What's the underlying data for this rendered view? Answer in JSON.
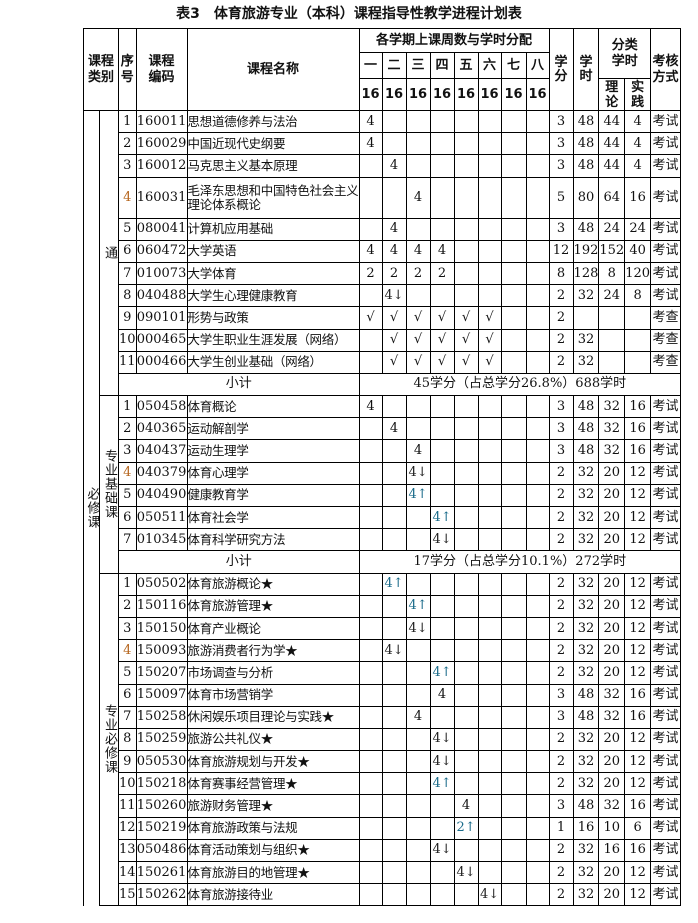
{
  "title": "表3　体育旅游专业（本科）课程指导性教学进程计划表",
  "header": {
    "category": "课程类别",
    "seq": "序号",
    "code": "课程编码",
    "name": "课程名称",
    "semester_group": "各学期上课周数与学时分配",
    "semesters": [
      "一",
      "二",
      "三",
      "四",
      "五",
      "六",
      "七",
      "八"
    ],
    "weeks": [
      "16",
      "16",
      "16",
      "16",
      "16",
      "16",
      "16",
      "16"
    ],
    "credits": "学分",
    "hours": "学时",
    "hour_types": "分类学时",
    "theory": "理论",
    "practice": "实践",
    "exam": "考核方式"
  },
  "outer_category": "必修课",
  "groups": [
    {
      "label": "通",
      "rows": [
        {
          "seq": "1",
          "code": "160011",
          "name": "思想道德修养与法治",
          "sem": [
            "4",
            "",
            "",
            "",
            "",
            "",
            "",
            ""
          ],
          "credits": "3",
          "hours": "48",
          "theory": "44",
          "practice": "4",
          "exam": "考试"
        },
        {
          "seq": "2",
          "code": "160029",
          "name": "中国近现代史纲要",
          "sem": [
            "4",
            "",
            "",
            "",
            "",
            "",
            "",
            ""
          ],
          "credits": "3",
          "hours": "48",
          "theory": "44",
          "practice": "4",
          "exam": "考试"
        },
        {
          "seq": "3",
          "code": "160012",
          "name": "马克思主义基本原理",
          "sem": [
            "",
            "4",
            "",
            "",
            "",
            "",
            "",
            ""
          ],
          "credits": "3",
          "hours": "48",
          "theory": "44",
          "practice": "4",
          "exam": "考试"
        },
        {
          "seq": "4",
          "code": "160031",
          "name": "毛泽东思想和中国特色社会主义理论体系概论",
          "sem": [
            "",
            "",
            "4",
            "",
            "",
            "",
            "",
            ""
          ],
          "credits": "5",
          "hours": "80",
          "theory": "64",
          "practice": "16",
          "exam": "考试"
        },
        {
          "seq": "5",
          "code": "080041",
          "name": "计算机应用基础",
          "sem": [
            "",
            "4",
            "",
            "",
            "",
            "",
            "",
            ""
          ],
          "credits": "3",
          "hours": "48",
          "theory": "24",
          "practice": "24",
          "exam": "考试"
        },
        {
          "seq": "6",
          "code": "060472",
          "name": "大学英语",
          "sem": [
            "4",
            "4",
            "4",
            "4",
            "",
            "",
            "",
            ""
          ],
          "credits": "12",
          "hours": "192",
          "theory": "152",
          "practice": "40",
          "exam": "考试"
        },
        {
          "seq": "7",
          "code": "010073",
          "name": "大学体育",
          "sem": [
            "2",
            "2",
            "2",
            "2",
            "",
            "",
            "",
            ""
          ],
          "credits": "8",
          "hours": "128",
          "theory": "8",
          "practice": "120",
          "exam": "考试"
        },
        {
          "seq": "8",
          "code": "040488",
          "name": "大学生心理健康教育",
          "sem": [
            "",
            "4↓",
            "",
            "",
            "",
            "",
            "",
            ""
          ],
          "credits": "2",
          "hours": "32",
          "theory": "24",
          "practice": "8",
          "exam": "考试"
        },
        {
          "seq": "9",
          "code": "090101",
          "name": "形势与政策",
          "sem": [
            "√",
            "√",
            "√",
            "√",
            "√",
            "√",
            "",
            ""
          ],
          "credits": "2",
          "hours": "",
          "theory": "",
          "practice": "",
          "exam": "考查"
        },
        {
          "seq": "10",
          "code": "000465",
          "name": "大学生职业生涯发展（网络）",
          "sem": [
            "",
            "√",
            "√",
            "√",
            "√",
            "√",
            "",
            ""
          ],
          "credits": "2",
          "hours": "32",
          "theory": "",
          "practice": "",
          "exam": "考查"
        },
        {
          "seq": "11",
          "code": "000466",
          "name": "大学生创业基础（网络）",
          "sem": [
            "",
            "√",
            "√",
            "√",
            "√",
            "√",
            "",
            ""
          ],
          "credits": "2",
          "hours": "32",
          "theory": "",
          "practice": "",
          "exam": "考查"
        }
      ],
      "subtotal_label": "小计",
      "subtotal": "45学分（占总学分26.8%）688学时"
    },
    {
      "label": "专业基础课",
      "rows": [
        {
          "seq": "1",
          "code": "050458",
          "name": "体育概论",
          "sem": [
            "4",
            "",
            "",
            "",
            "",
            "",
            "",
            ""
          ],
          "credits": "3",
          "hours": "48",
          "theory": "32",
          "practice": "16",
          "exam": "考试"
        },
        {
          "seq": "2",
          "code": "040365",
          "name": "运动解剖学",
          "sem": [
            "",
            "4",
            "",
            "",
            "",
            "",
            "",
            ""
          ],
          "credits": "3",
          "hours": "48",
          "theory": "32",
          "practice": "16",
          "exam": "考试"
        },
        {
          "seq": "3",
          "code": "040437",
          "name": "运动生理学",
          "sem": [
            "",
            "",
            "4",
            "",
            "",
            "",
            "",
            ""
          ],
          "credits": "3",
          "hours": "48",
          "theory": "32",
          "practice": "16",
          "exam": "考试"
        },
        {
          "seq": "4",
          "code": "040379",
          "name": "体育心理学",
          "sem": [
            "",
            "",
            "4↓",
            "",
            "",
            "",
            "",
            ""
          ],
          "credits": "2",
          "hours": "32",
          "theory": "20",
          "practice": "12",
          "exam": "考试"
        },
        {
          "seq": "5",
          "code": "040490",
          "name": "健康教育学",
          "sem": [
            "",
            "",
            "4↑",
            "",
            "",
            "",
            "",
            ""
          ],
          "credits": "2",
          "hours": "32",
          "theory": "20",
          "practice": "12",
          "exam": "考试"
        },
        {
          "seq": "6",
          "code": "050511",
          "name": "体育社会学",
          "sem": [
            "",
            "",
            "",
            "4↑",
            "",
            "",
            "",
            ""
          ],
          "credits": "2",
          "hours": "32",
          "theory": "20",
          "practice": "12",
          "exam": "考试"
        },
        {
          "seq": "7",
          "code": "010345",
          "name": "体育科学研究方法",
          "sem": [
            "",
            "",
            "",
            "4↓",
            "",
            "",
            "",
            ""
          ],
          "credits": "2",
          "hours": "32",
          "theory": "20",
          "practice": "12",
          "exam": "考试"
        }
      ],
      "subtotal_label": "小计",
      "subtotal": "17学分（占总学分10.1%）272学时"
    },
    {
      "label": "专业必修课",
      "rows": [
        {
          "seq": "1",
          "code": "050502",
          "name": "体育旅游概论★",
          "sem": [
            "",
            "4↑",
            "",
            "",
            "",
            "",
            "",
            ""
          ],
          "credits": "2",
          "hours": "32",
          "theory": "20",
          "practice": "12",
          "exam": "考试"
        },
        {
          "seq": "2",
          "code": "150116",
          "name": "体育旅游管理★",
          "sem": [
            "",
            "",
            "4↑",
            "",
            "",
            "",
            "",
            ""
          ],
          "credits": "2",
          "hours": "32",
          "theory": "20",
          "practice": "12",
          "exam": "考试"
        },
        {
          "seq": "3",
          "code": "150150",
          "name": "体育产业概论",
          "sem": [
            "",
            "",
            "4↓",
            "",
            "",
            "",
            "",
            ""
          ],
          "credits": "2",
          "hours": "32",
          "theory": "20",
          "practice": "12",
          "exam": "考试"
        },
        {
          "seq": "4",
          "code": "150093",
          "name": "旅游消费者行为学★",
          "sem": [
            "",
            "4↓",
            "",
            "",
            "",
            "",
            "",
            ""
          ],
          "credits": "2",
          "hours": "32",
          "theory": "20",
          "practice": "12",
          "exam": "考试"
        },
        {
          "seq": "5",
          "code": "150207",
          "name": "市场调查与分析",
          "sem": [
            "",
            "",
            "",
            "4↑",
            "",
            "",
            "",
            ""
          ],
          "credits": "2",
          "hours": "32",
          "theory": "20",
          "practice": "12",
          "exam": "考试"
        },
        {
          "seq": "6",
          "code": "150097",
          "name": "体育市场营销学",
          "sem": [
            "",
            "",
            "",
            "4",
            "",
            "",
            "",
            ""
          ],
          "credits": "3",
          "hours": "48",
          "theory": "32",
          "practice": "16",
          "exam": "考试"
        },
        {
          "seq": "7",
          "code": "150258",
          "name": "休闲娱乐项目理论与实践★",
          "sem": [
            "",
            "",
            "4",
            "",
            "",
            "",
            "",
            ""
          ],
          "credits": "3",
          "hours": "48",
          "theory": "32",
          "practice": "16",
          "exam": "考试"
        },
        {
          "seq": "8",
          "code": "150259",
          "name": "旅游公共礼仪★",
          "sem": [
            "",
            "",
            "",
            "4↓",
            "",
            "",
            "",
            ""
          ],
          "credits": "2",
          "hours": "32",
          "theory": "20",
          "practice": "12",
          "exam": "考试"
        },
        {
          "seq": "9",
          "code": "050530",
          "name": "体育旅游规划与开发★",
          "sem": [
            "",
            "",
            "",
            "4↓",
            "",
            "",
            "",
            ""
          ],
          "credits": "2",
          "hours": "32",
          "theory": "20",
          "practice": "12",
          "exam": "考试"
        },
        {
          "seq": "10",
          "code": "150218",
          "name": "体育赛事经营管理★",
          "sem": [
            "",
            "",
            "",
            "4↑",
            "",
            "",
            "",
            ""
          ],
          "credits": "2",
          "hours": "32",
          "theory": "20",
          "practice": "12",
          "exam": "考试"
        },
        {
          "seq": "11",
          "code": "150260",
          "name": "旅游财务管理★",
          "sem": [
            "",
            "",
            "",
            "",
            "4",
            "",
            "",
            ""
          ],
          "credits": "3",
          "hours": "48",
          "theory": "32",
          "practice": "16",
          "exam": "考试"
        },
        {
          "seq": "12",
          "code": "150219",
          "name": "体育旅游政策与法规",
          "sem": [
            "",
            "",
            "",
            "",
            "2↑",
            "",
            "",
            ""
          ],
          "credits": "1",
          "hours": "16",
          "theory": "10",
          "practice": "6",
          "exam": "考试"
        },
        {
          "seq": "13",
          "code": "050486",
          "name": "体育活动策划与组织★",
          "sem": [
            "",
            "",
            "",
            "4↓",
            "",
            "",
            "",
            ""
          ],
          "credits": "2",
          "hours": "32",
          "theory": "16",
          "practice": "16",
          "exam": "考试"
        },
        {
          "seq": "14",
          "code": "150261",
          "name": "体育旅游目的地管理★",
          "sem": [
            "",
            "",
            "",
            "",
            "4↓",
            "",
            "",
            ""
          ],
          "credits": "2",
          "hours": "32",
          "theory": "20",
          "practice": "12",
          "exam": "考试"
        },
        {
          "seq": "15",
          "code": "150262",
          "name": "体育旅游接待业",
          "sem": [
            "",
            "",
            "",
            "",
            "",
            "4↓",
            "",
            ""
          ],
          "credits": "2",
          "hours": "32",
          "theory": "20",
          "practice": "12",
          "exam": "考试"
        }
      ]
    }
  ]
}
